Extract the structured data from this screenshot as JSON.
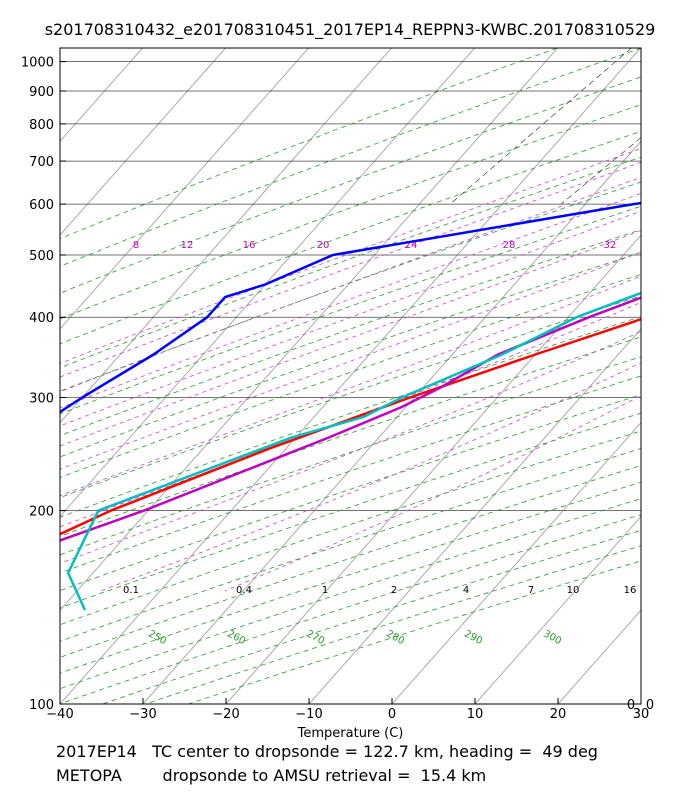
{
  "chart_data": {
    "type": "line",
    "title": "s201708310432_e201708310451_2017EP14_REPPN3-KWBC.201708310529",
    "xlabel": "Temperature (C)",
    "ylabel": "",
    "xlim": [
      -40,
      30
    ],
    "ylim": [
      1050,
      100
    ],
    "y_scale": "log",
    "skew": "skew-T log-p",
    "grid": true,
    "x_ticks": [
      "−40",
      "−30",
      "−20",
      "−10",
      "0",
      "10",
      "20",
      "30"
    ],
    "x_tick_values": [
      -40,
      -30,
      -20,
      -10,
      0,
      10,
      20,
      30
    ],
    "pressure_ticks": [
      1000,
      900,
      800,
      700,
      600,
      500,
      400,
      300,
      200,
      100
    ],
    "mixing_ratio_top_labels": [
      "8",
      "12",
      "16",
      "20",
      "24",
      "28",
      "32"
    ],
    "mixing_ratio_bottom_labels": [
      "0.1",
      "0.4",
      "1",
      "2",
      "4",
      "7",
      "10",
      "16"
    ],
    "dry_adiabat_labels": [
      "250",
      "260",
      "270",
      "280",
      "290",
      "300"
    ],
    "series": [
      {
        "color": "#ff0000",
        "pressure": [
          100,
          120,
          150,
          170,
          200,
          250,
          300,
          350,
          400,
          450,
          500,
          600
        ],
        "temperature": [
          -79,
          -72,
          -64,
          -61.5,
          -54.5,
          -42,
          -30.5,
          -20,
          -10.5,
          -2.7,
          3.7,
          14
        ]
      },
      {
        "color": "#bf00bf",
        "pressure": [
          100,
          105,
          130,
          160,
          200,
          260,
          290,
          310,
          350,
          400,
          450,
          500,
          550,
          600,
          650
        ],
        "temperature": [
          -86.5,
          -88,
          -74,
          -65,
          -50.5,
          -36,
          -30.5,
          -28,
          -24.5,
          -17.5,
          -10.5,
          -6.2,
          -2.1,
          1.6,
          4.6
        ]
      },
      {
        "color": "#00bfbf",
        "pressure": [
          140,
          160,
          200,
          260,
          280,
          300,
          350,
          400,
          450,
          500,
          550,
          600,
          640,
          660,
          700,
          800,
          900,
          1000
        ],
        "temperature": [
          -47,
          -53,
          -56,
          -40.5,
          -34,
          -31.5,
          -24,
          -19,
          -12,
          -7,
          -4,
          -1.3,
          0.5,
          5,
          8,
          15.5,
          22,
          27.5
        ]
      },
      {
        "color": "#0000ff",
        "pressure": [
          100,
          110,
          130,
          160,
          200,
          250,
          300,
          350,
          400,
          430,
          450,
          500,
          580,
          640,
          700,
          750,
          900,
          920,
          950,
          980,
          1000
        ],
        "temperature": [
          -79,
          -83,
          -86,
          -85,
          -79,
          -74,
          -70,
          -66,
          -63.5,
          -63.5,
          -60,
          -55,
          -30,
          -13,
          -2.5,
          4.5,
          23.5,
          22.5,
          23.2,
          26,
          27.8
        ]
      }
    ]
  },
  "captions": {
    "line1": "2017EP14   TC center to dropsonde = 122.7 km, heading =  49 deg",
    "line2": "METOPA        dropsonde to AMSU retrieval =  15.4 km"
  },
  "corner_labels": {
    "left": "0",
    "right": "0"
  }
}
